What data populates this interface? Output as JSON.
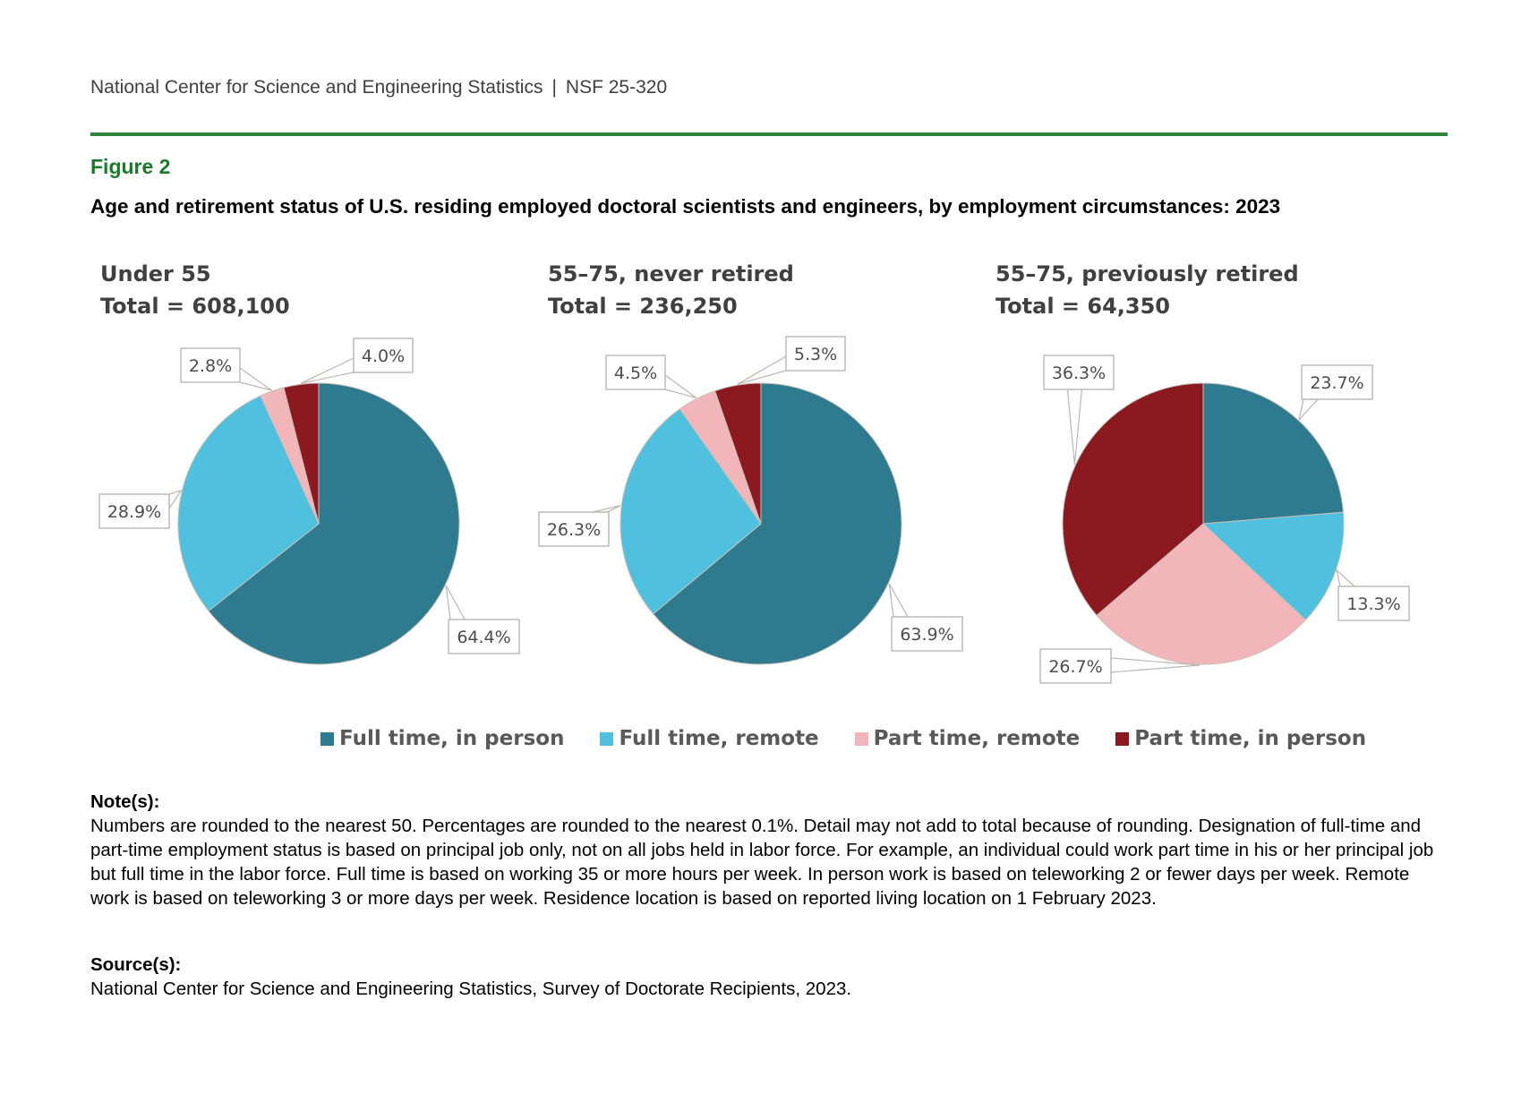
{
  "header": {
    "organization": "National Center for Science and Engineering Statistics",
    "separator": "|",
    "report_id": "NSF 25-320"
  },
  "figure": {
    "label": "Figure 2",
    "title": "Age and retirement status of U.S. residing employed doctoral scientists and engineers, by employment circumstances: 2023"
  },
  "colors": {
    "full_time_in_person": "#2e7b8f",
    "full_time_remote": "#4fc1de",
    "part_time_remote": "#f2b6ba",
    "part_time_in_person": "#8c1820",
    "rule": "#2e8540",
    "slice_border": "#c8bfb8",
    "callout_border": "#bfb6b0"
  },
  "legend": {
    "items": [
      {
        "label": "Full time, in person",
        "color": "#2e7b8f"
      },
      {
        "label": "Full time, remote",
        "color": "#4fc1de"
      },
      {
        "label": "Part time, remote",
        "color": "#f2b6ba"
      },
      {
        "label": "Part time, in person",
        "color": "#8c1820"
      }
    ]
  },
  "chart_data": [
    {
      "type": "pie",
      "title": "Under 55",
      "subtitle": "Total = 608,100",
      "total": 608100,
      "categories": [
        "Full time, in person",
        "Full time, remote",
        "Part time, remote",
        "Part time, in person"
      ],
      "values": [
        64.4,
        28.9,
        2.8,
        4.0
      ],
      "labels": [
        "64.4%",
        "28.9%",
        "2.8%",
        "4.0%"
      ],
      "unit": "percent",
      "start": "12 o'clock, clockwise"
    },
    {
      "type": "pie",
      "title": "55–75, never retired",
      "subtitle": "Total = 236,250",
      "total": 236250,
      "categories": [
        "Full time, in person",
        "Full time, remote",
        "Part time, remote",
        "Part time, in person"
      ],
      "values": [
        63.9,
        26.3,
        4.5,
        5.3
      ],
      "labels": [
        "63.9%",
        "26.3%",
        "4.5%",
        "5.3%"
      ],
      "unit": "percent",
      "start": "12 o'clock, clockwise"
    },
    {
      "type": "pie",
      "title": "55–75, previously retired",
      "subtitle": "Total = 64,350",
      "total": 64350,
      "categories": [
        "Full time, in person",
        "Full time, remote",
        "Part time, remote",
        "Part time, in person"
      ],
      "values": [
        23.7,
        13.3,
        26.7,
        36.3
      ],
      "labels": [
        "23.7%",
        "13.3%",
        "26.7%",
        "36.3%"
      ],
      "unit": "percent",
      "start": "12 o'clock, clockwise"
    }
  ],
  "notes": {
    "heading": "Note(s):",
    "text": "Numbers are rounded to the nearest 50. Percentages are rounded to the nearest 0.1%. Detail may not add to total because of rounding. Designation of full-time and part-time employment status is based on principal job only, not on all jobs held in labor force. For example, an individual could work part time in his or her principal job but full time in the labor force. Full time is based on working 35 or more hours per week. In person work is based on teleworking 2 or fewer days per week. Remote work is based on teleworking 3 or more days per week. Residence location is based on reported living location on 1 February 2023."
  },
  "source": {
    "heading": "Source(s):",
    "text": "National Center for Science and Engineering Statistics, Survey of Doctorate Recipients, 2023."
  }
}
